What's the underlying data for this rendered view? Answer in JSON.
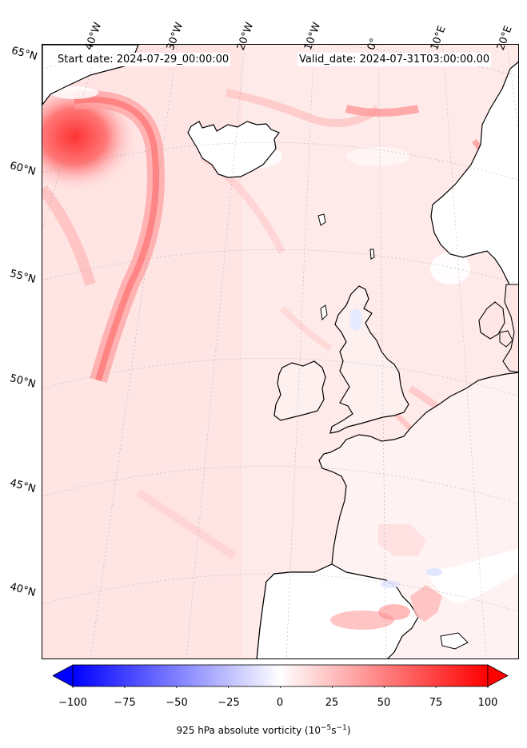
{
  "header": {
    "start_date": "Start date: 2024-07-29_00:00:00",
    "valid_date": "Valid_date: 2024-07-31T03:00:00.00"
  },
  "map": {
    "projection": "conic",
    "lon_labels": [
      "40°W",
      "30°W",
      "20°W",
      "10°W",
      "0°",
      "10°E",
      "20°E"
    ],
    "lat_labels": [
      "65°N",
      "60°N",
      "55°N",
      "50°N",
      "45°N",
      "40°N"
    ],
    "gridlines": true,
    "field": "925 hPa absolute vorticity",
    "colors": {
      "positive": "#ff0000",
      "negative": "#0000ff",
      "neutral": "#ffffff",
      "coast": "#000000"
    }
  },
  "colorbar": {
    "ticks": [
      "−100",
      "−75",
      "−50",
      "−25",
      "0",
      "25",
      "50",
      "75",
      "100"
    ],
    "range": [
      -100,
      100
    ],
    "extend": "both",
    "label_text": "925 hPa absolute vorticity (10",
    "label_exp1": "−5",
    "label_mid": "s",
    "label_exp2": "−1",
    "label_end": ")"
  }
}
